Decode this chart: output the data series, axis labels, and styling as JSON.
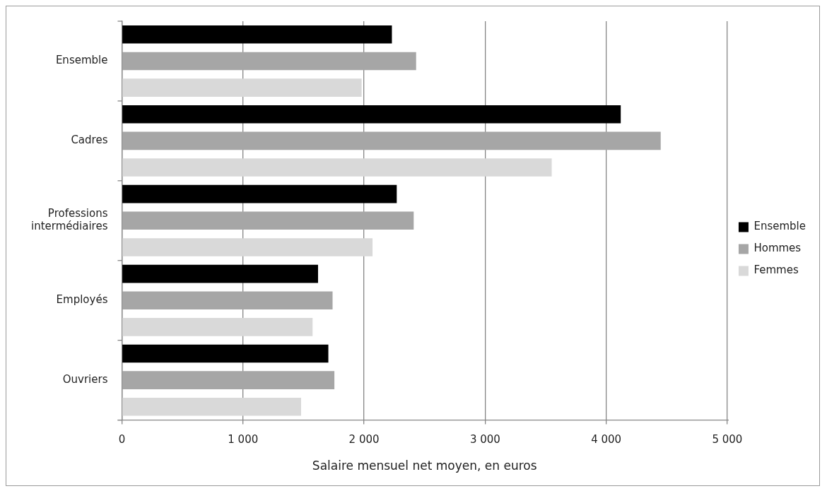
{
  "chart_data": {
    "type": "bar",
    "orientation": "horizontal",
    "xlabel": "Salaire mensuel net moyen, en euros",
    "categories": [
      "Ensemble",
      "Cadres",
      "Professions intermédiaires",
      "Employés",
      "Ouvriers"
    ],
    "series": [
      {
        "name": "Ensemble",
        "color": "#000000",
        "values": [
          2230,
          4120,
          2270,
          1620,
          1705
        ]
      },
      {
        "name": "Hommes",
        "color": "#a6a6a6",
        "values": [
          2430,
          4450,
          2410,
          1740,
          1755
        ]
      },
      {
        "name": "Femmes",
        "color": "#d9d9d9",
        "values": [
          1980,
          3550,
          2070,
          1575,
          1480
        ]
      }
    ],
    "xlim": [
      0,
      5000
    ],
    "xticks": [
      {
        "value": 0,
        "label": "0"
      },
      {
        "value": 1000,
        "label": "1 000"
      },
      {
        "value": 2000,
        "label": "2 000"
      },
      {
        "value": 3000,
        "label": "3 000"
      },
      {
        "value": 4000,
        "label": "4 000"
      },
      {
        "value": 5000,
        "label": "5 000"
      }
    ],
    "grid": "x",
    "legend": "right"
  }
}
